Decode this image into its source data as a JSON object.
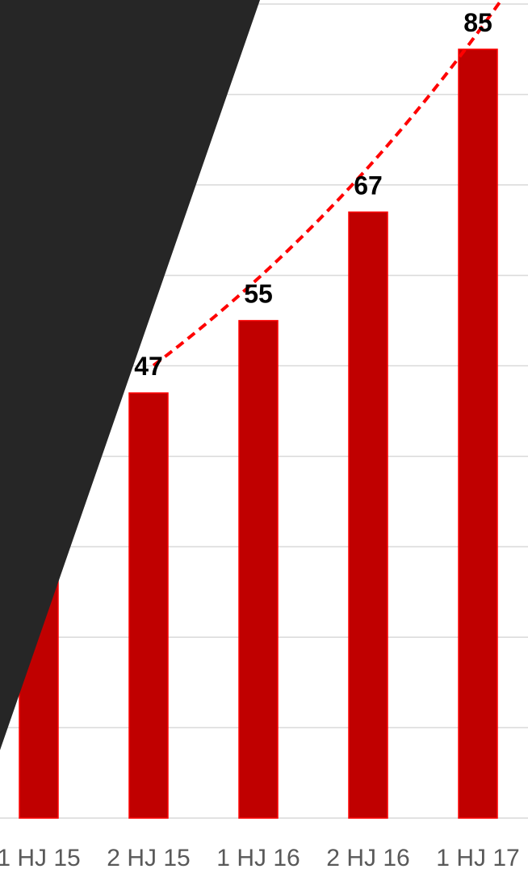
{
  "chart_data": {
    "type": "bar",
    "categories": [
      "1 HJ 15",
      "2 HJ 15",
      "1 HJ 16",
      "2 HJ 16",
      "1 HJ 17"
    ],
    "values": [
      null,
      47,
      55,
      67,
      85
    ],
    "data_labels": [
      "",
      "47",
      "55",
      "67",
      "85"
    ],
    "ylim": [
      0,
      90
    ],
    "grid": true,
    "trendline": {
      "type": "exponential",
      "style": "dashed",
      "color": "#ff0000"
    },
    "colors": {
      "bar": "#c00000",
      "bar_outline": "#ff0000",
      "gridline": "#d9d9d9",
      "overlay": "#262626"
    },
    "legend": "none"
  }
}
